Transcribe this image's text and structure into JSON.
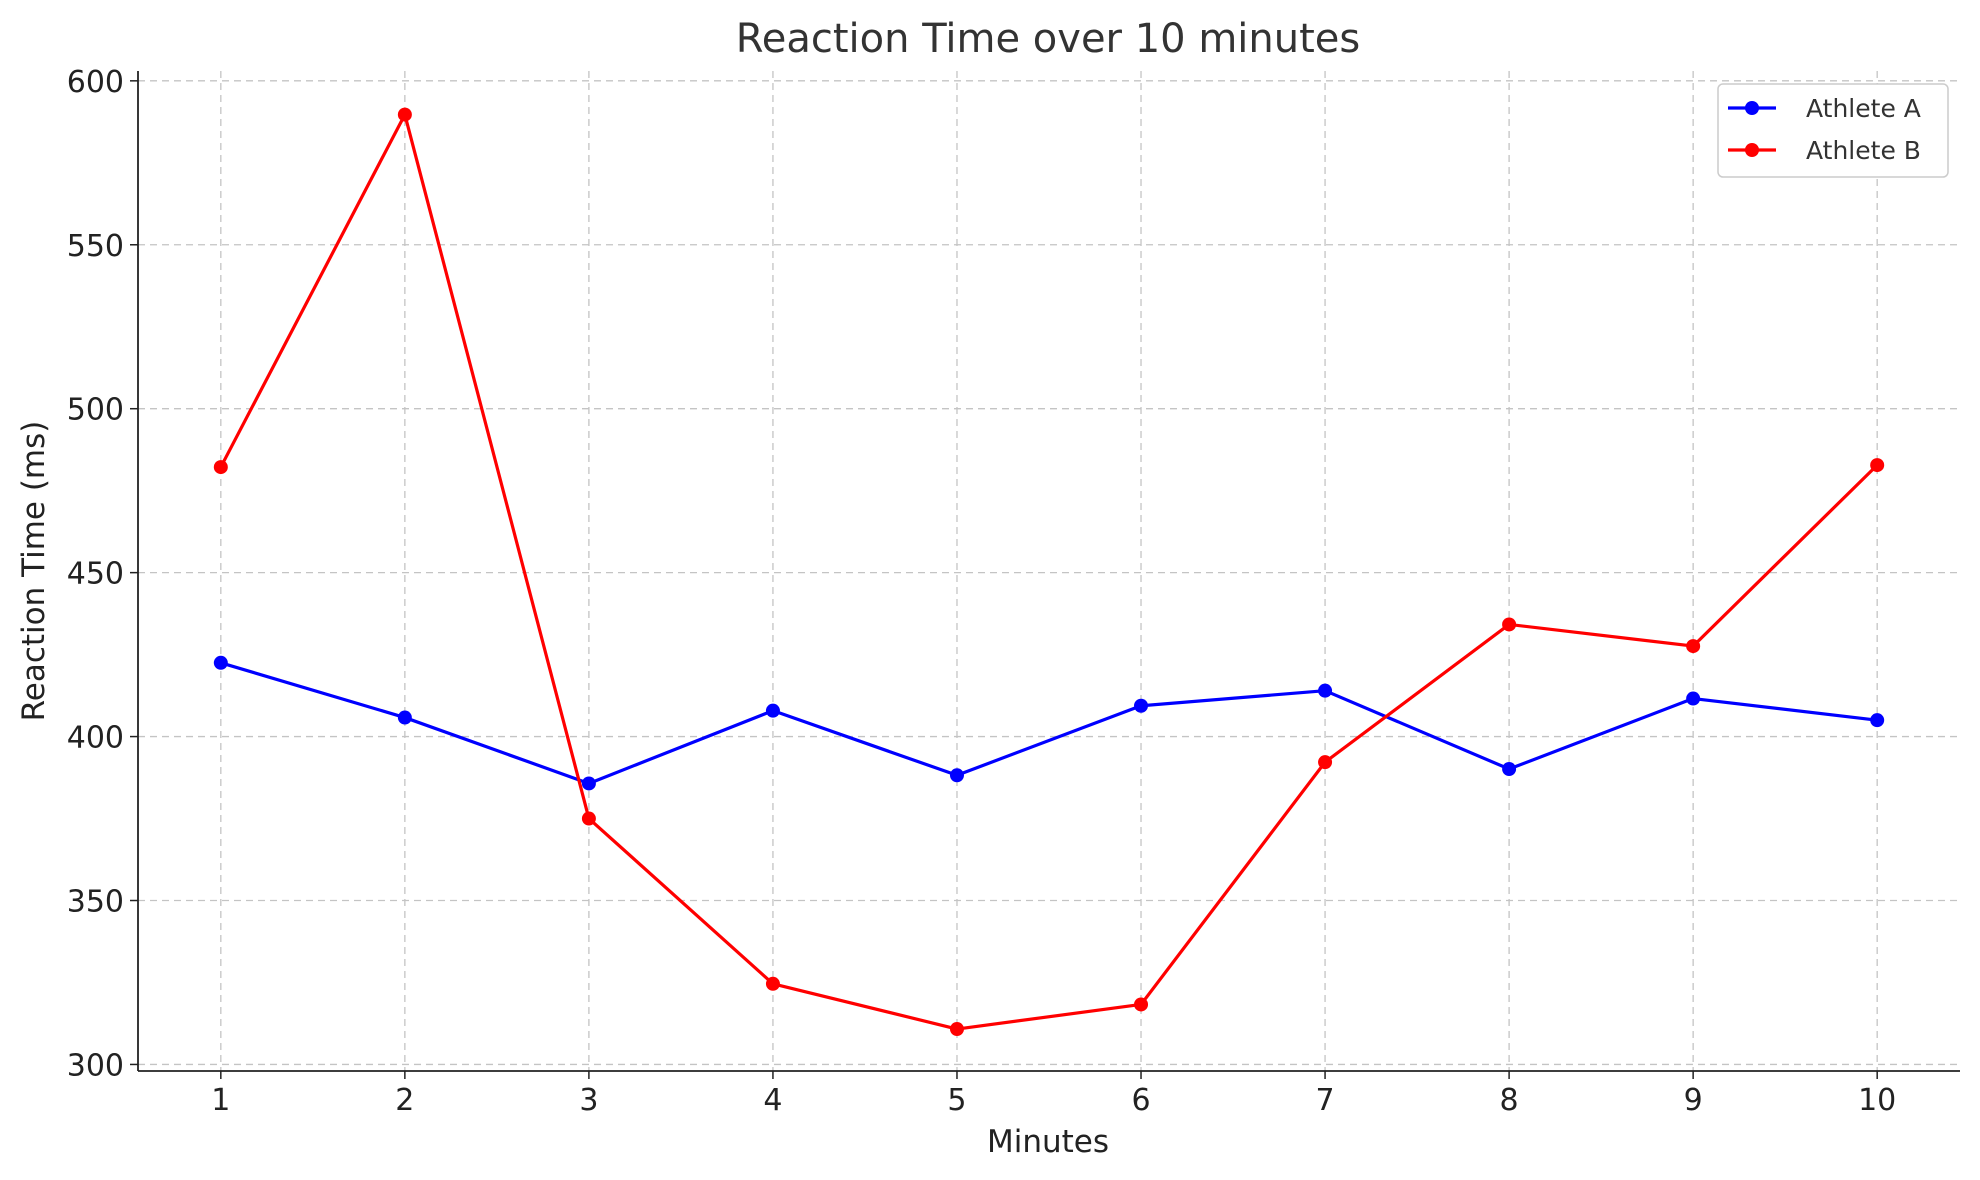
{
  "chart_data": {
    "type": "line",
    "title": "Reaction Time over 10 minutes",
    "xlabel": "Minutes",
    "ylabel": "Reaction Time (ms)",
    "x": [
      1,
      2,
      3,
      4,
      5,
      6,
      7,
      8,
      9,
      10
    ],
    "x_ticks": [
      "1",
      "2",
      "3",
      "4",
      "5",
      "6",
      "7",
      "8",
      "9",
      "10"
    ],
    "y_ticks": [
      300,
      350,
      400,
      450,
      500,
      550,
      600
    ],
    "xlim": [
      0.55,
      10.45
    ],
    "ylim": [
      298,
      603
    ],
    "grid": true,
    "legend_position": "top-right",
    "series": [
      {
        "name": "Athlete A",
        "color": "#0000ff",
        "values": [
          422.5,
          405.8,
          385.7,
          407.9,
          388.2,
          409.4,
          414.0,
          390.1,
          411.6,
          405.0
        ]
      },
      {
        "name": "Athlete B",
        "color": "#ff0000",
        "values": [
          482.2,
          589.7,
          375.0,
          324.6,
          310.8,
          318.3,
          392.2,
          434.2,
          427.6,
          482.8
        ]
      }
    ]
  }
}
